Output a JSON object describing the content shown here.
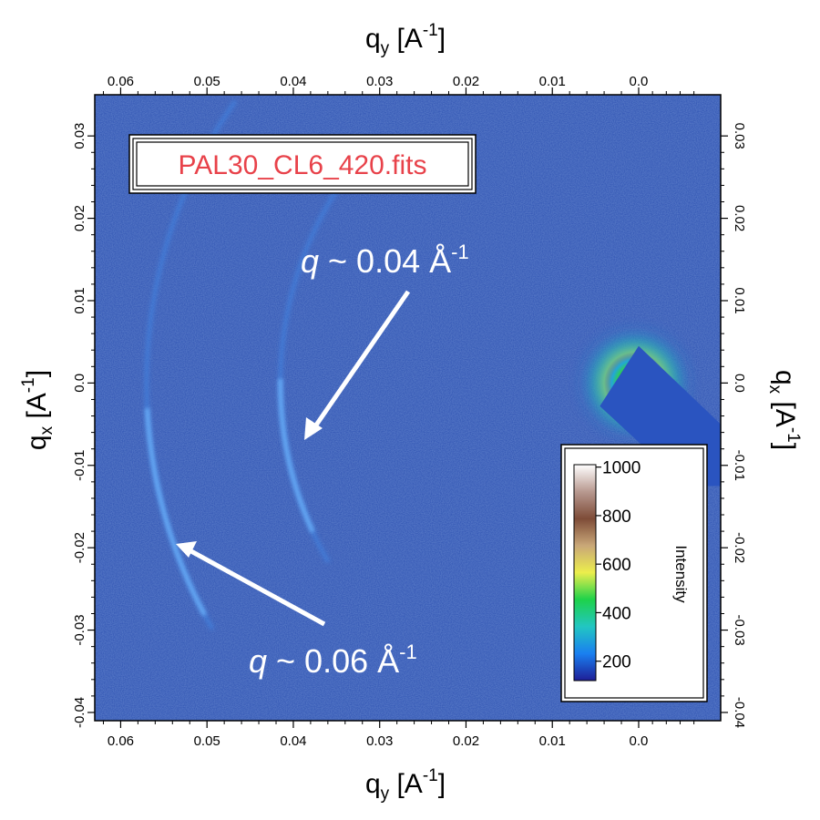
{
  "chart_data": {
    "type": "heatmap",
    "file_label": "PAL30_CL6_420.fits",
    "x_axis": {
      "label_main": "q",
      "label_sub": "y",
      "label_unit_open": " [A",
      "label_unit_sup": "-1",
      "label_unit_close": "]",
      "range": [
        0.063,
        -0.0095
      ],
      "ticks": [
        0.06,
        0.05,
        0.04,
        0.03,
        0.02,
        0.01,
        0.0
      ],
      "tick_labels": [
        "0.06",
        "0.05",
        "0.04",
        "0.03",
        "0.02",
        "0.01",
        "0.0"
      ]
    },
    "y_axis": {
      "label_main": "q",
      "label_sub": "x",
      "label_unit_open": " [A",
      "label_unit_sup": "-1",
      "label_unit_close": "]",
      "range": [
        -0.041,
        0.035
      ],
      "ticks": [
        0.03,
        0.02,
        0.01,
        0.0,
        -0.01,
        -0.02,
        -0.03,
        -0.04
      ],
      "tick_labels": [
        "0.03",
        "0.02",
        "0.01",
        "0.0",
        "-0.01",
        "-0.02",
        "-0.03",
        "-0.04"
      ]
    },
    "annotations": [
      {
        "prefix": "q",
        "text": " ~ 0.04 Å",
        "sup": "-1",
        "q": 0.04
      },
      {
        "prefix": "q",
        "text": " ~ 0.06 Å",
        "sup": "-1",
        "q": 0.06
      }
    ],
    "rings": [
      {
        "q": 0.0415,
        "peak_qx": -0.009
      },
      {
        "q": 0.057,
        "peak_qx": -0.016
      }
    ],
    "colorbar": {
      "title": "Intensity",
      "range": [
        120,
        1010
      ],
      "ticks": [
        200,
        400,
        600,
        800,
        1000
      ],
      "tick_labels": [
        "200",
        "400",
        "600",
        "800",
        "1000"
      ],
      "colors": [
        "#1e1e96",
        "#1a7ff0",
        "#22c6c2",
        "#1ed24a",
        "#ecee4c",
        "#c9a778",
        "#7e4c38",
        "#b89990",
        "#ffffff"
      ]
    },
    "background_color": "#2b4fb0",
    "beamstop_color": "#2a54c0"
  }
}
